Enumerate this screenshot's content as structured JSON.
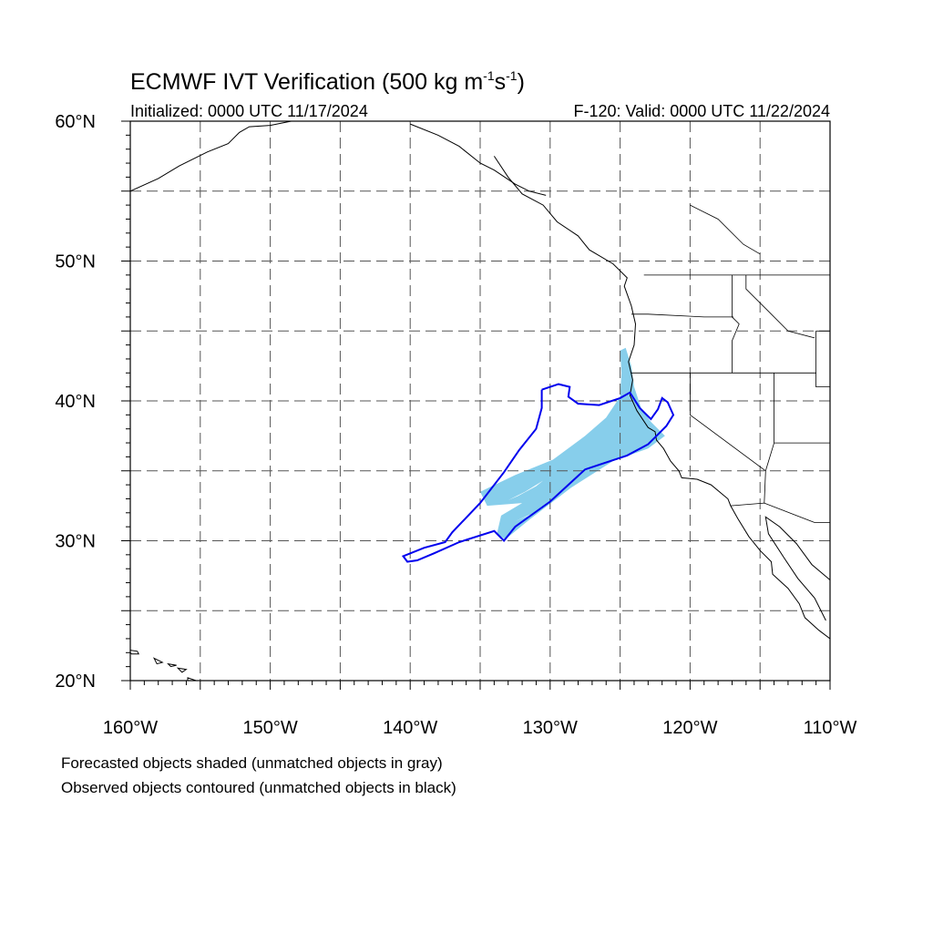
{
  "title": "ECMWF IVT Verification (500 kg m",
  "title_sup1": "-1",
  "title_mid": "s",
  "title_sup2": "-1",
  "title_end": ")",
  "initialized": "Initialized: 0000 UTC 11/17/2024",
  "valid": "F-120: Valid: 0000 UTC 11/22/2024",
  "map": {
    "lon_range": [
      -160,
      -110
    ],
    "lat_range": [
      20,
      60
    ],
    "lon_ticks": [
      {
        "value": -160,
        "label": "160°W"
      },
      {
        "value": -150,
        "label": "150°W"
      },
      {
        "value": -140,
        "label": "140°W"
      },
      {
        "value": -130,
        "label": "130°W"
      },
      {
        "value": -120,
        "label": "120°W"
      },
      {
        "value": -110,
        "label": "110°W"
      }
    ],
    "lat_ticks": [
      {
        "value": 60,
        "label": "60°N"
      },
      {
        "value": 50,
        "label": "50°N"
      },
      {
        "value": 40,
        "label": "40°N"
      },
      {
        "value": 30,
        "label": "30°N"
      },
      {
        "value": 20,
        "label": "20°N"
      }
    ],
    "grid_lons": [
      -155,
      -150,
      -145,
      -140,
      -135,
      -130,
      -125,
      -120,
      -115
    ],
    "grid_lats": [
      55,
      50,
      45,
      40,
      35,
      30,
      25
    ],
    "forecast_color": "#87ceeb",
    "observed_color": "#0000ee",
    "forecast_object": [
      [
        -124.6,
        43.8
      ],
      [
        -124.2,
        42.5
      ],
      [
        -124.0,
        41.0
      ],
      [
        -123.5,
        39.5
      ],
      [
        -122.8,
        38.5
      ],
      [
        -121.8,
        37.5
      ],
      [
        -123.0,
        36.6
      ],
      [
        -125.5,
        35.7
      ],
      [
        -128.5,
        33.8
      ],
      [
        -131.5,
        31.5
      ],
      [
        -133.2,
        30.1
      ],
      [
        -133.8,
        30.5
      ],
      [
        -133.5,
        31.8
      ],
      [
        -132.0,
        32.7
      ],
      [
        -134.5,
        32.5
      ],
      [
        -135.0,
        33.5
      ],
      [
        -132.5,
        34.7
      ],
      [
        -129.8,
        35.8
      ],
      [
        -127.5,
        37.5
      ],
      [
        -126.0,
        38.8
      ],
      [
        -125.0,
        40.3
      ],
      [
        -124.9,
        42.0
      ],
      [
        -125.0,
        43.6
      ]
    ],
    "forecast_gaps": [
      [
        [
          -130.5,
          34.3
        ],
        [
          -131.8,
          33.5
        ],
        [
          -133.0,
          32.9
        ],
        [
          -132.3,
          33.2
        ],
        [
          -131.0,
          33.9
        ]
      ],
      [
        [
          -131.0,
          32.0
        ],
        [
          -132.5,
          31.4
        ],
        [
          -131.6,
          31.8
        ]
      ]
    ],
    "observed_object": [
      [
        -130.6,
        40.8
      ],
      [
        -129.4,
        41.2
      ],
      [
        -128.6,
        41.0
      ],
      [
        -128.7,
        40.3
      ],
      [
        -128.0,
        39.8
      ],
      [
        -126.5,
        39.7
      ],
      [
        -125.0,
        40.2
      ],
      [
        -124.3,
        40.6
      ],
      [
        -123.6,
        39.5
      ],
      [
        -122.8,
        38.7
      ],
      [
        -122.3,
        39.4
      ],
      [
        -122.0,
        40.2
      ],
      [
        -121.6,
        39.9
      ],
      [
        -121.2,
        39.0
      ],
      [
        -121.7,
        38.2
      ],
      [
        -122.4,
        37.5
      ],
      [
        -123.0,
        36.9
      ],
      [
        -124.5,
        36.1
      ],
      [
        -127.5,
        35.1
      ],
      [
        -130.0,
        32.8
      ],
      [
        -132.5,
        31.0
      ],
      [
        -133.3,
        30.0
      ],
      [
        -134.0,
        30.7
      ],
      [
        -136.5,
        29.9
      ],
      [
        -138.3,
        29.1
      ],
      [
        -139.5,
        28.6
      ],
      [
        -140.2,
        28.5
      ],
      [
        -140.5,
        28.9
      ],
      [
        -139.0,
        29.5
      ],
      [
        -137.5,
        29.9
      ],
      [
        -137.0,
        30.6
      ],
      [
        -135.0,
        32.7
      ],
      [
        -133.3,
        34.9
      ],
      [
        -132.2,
        36.5
      ],
      [
        -131.0,
        38.0
      ],
      [
        -130.6,
        39.5
      ],
      [
        -130.6,
        40.8
      ]
    ],
    "coastline": [
      [
        -134.0,
        57.5
      ],
      [
        -133.0,
        56.0
      ],
      [
        -132.0,
        54.8
      ],
      [
        -130.5,
        54.0
      ],
      [
        -129.5,
        52.8
      ],
      [
        -128.0,
        51.8
      ],
      [
        -127.2,
        50.8
      ],
      [
        -125.5,
        49.8
      ],
      [
        -124.5,
        48.8
      ],
      [
        -124.7,
        48.2
      ],
      [
        -124.2,
        46.8
      ],
      [
        -123.9,
        45.5
      ],
      [
        -124.0,
        44.0
      ],
      [
        -124.4,
        42.8
      ],
      [
        -124.1,
        41.5
      ],
      [
        -124.3,
        40.4
      ],
      [
        -123.8,
        39.3
      ],
      [
        -123.0,
        38.1
      ],
      [
        -122.5,
        37.8
      ],
      [
        -122.4,
        37.2
      ],
      [
        -121.9,
        36.6
      ],
      [
        -121.4,
        35.7
      ],
      [
        -120.8,
        35.0
      ],
      [
        -120.6,
        34.5
      ],
      [
        -119.5,
        34.4
      ],
      [
        -118.5,
        34.0
      ],
      [
        -117.3,
        33.0
      ],
      [
        -117.1,
        32.5
      ],
      [
        -116.6,
        31.6
      ],
      [
        -115.8,
        30.3
      ],
      [
        -115.0,
        29.3
      ],
      [
        -114.2,
        28.5
      ],
      [
        -114.1,
        27.6
      ],
      [
        -113.0,
        26.6
      ],
      [
        -112.2,
        25.5
      ],
      [
        -111.8,
        24.5
      ],
      [
        -110.8,
        23.6
      ],
      [
        -110.0,
        23.0
      ]
    ],
    "gulf_coast": [
      [
        -110.0,
        27.2
      ],
      [
        -111.3,
        28.3
      ],
      [
        -112.4,
        29.8
      ],
      [
        -113.6,
        31.0
      ],
      [
        -114.6,
        31.7
      ],
      [
        -114.4,
        30.5
      ],
      [
        -113.3,
        28.8
      ],
      [
        -112.3,
        27.3
      ],
      [
        -111.1,
        25.9
      ],
      [
        -110.3,
        24.3
      ]
    ],
    "alaska_coast": [
      [
        -160.0,
        55.0
      ],
      [
        -158.0,
        55.9
      ],
      [
        -156.5,
        56.8
      ],
      [
        -154.5,
        57.8
      ],
      [
        -153.0,
        58.4
      ],
      [
        -152.2,
        59.2
      ],
      [
        -151.5,
        59.6
      ],
      [
        -150.0,
        59.7
      ],
      [
        -148.5,
        60.0
      ]
    ],
    "se_alaska": [
      [
        -140.0,
        59.8
      ],
      [
        -138.0,
        59.0
      ],
      [
        -136.5,
        58.2
      ],
      [
        -135.0,
        57.0
      ],
      [
        -134.0,
        56.5
      ],
      [
        -132.5,
        55.5
      ],
      [
        -131.5,
        55.0
      ],
      [
        -130.3,
        54.7
      ]
    ],
    "hawaii": [
      [
        [
          -160.2,
          22.2
        ],
        [
          -159.5,
          22.1
        ],
        [
          -159.4,
          21.9
        ],
        [
          -159.9,
          21.9
        ],
        [
          -160.2,
          22.2
        ]
      ],
      [
        [
          -158.3,
          21.6
        ],
        [
          -157.7,
          21.3
        ],
        [
          -158.1,
          21.2
        ],
        [
          -158.3,
          21.6
        ]
      ],
      [
        [
          -157.3,
          21.2
        ],
        [
          -156.7,
          21.1
        ],
        [
          -157.1,
          21.0
        ],
        [
          -157.3,
          21.2
        ]
      ],
      [
        [
          -156.6,
          20.9
        ],
        [
          -156.0,
          20.8
        ],
        [
          -156.3,
          20.6
        ],
        [
          -156.6,
          20.9
        ]
      ],
      [
        [
          -155.9,
          20.2
        ],
        [
          -155.0,
          19.9
        ],
        [
          -155.3,
          19.1
        ],
        [
          -155.9,
          19.5
        ],
        [
          -155.9,
          20.2
        ]
      ]
    ],
    "borders": [
      [
        [
          -123.3,
          49.0
        ],
        [
          -110.0,
          49.0
        ]
      ],
      [
        [
          -124.2,
          46.2
        ],
        [
          -123.0,
          46.2
        ],
        [
          -119.0,
          46.0
        ],
        [
          -116.9,
          46.0
        ]
      ],
      [
        [
          -124.2,
          42.0
        ],
        [
          -117.0,
          42.0
        ],
        [
          -111.0,
          42.0
        ]
      ],
      [
        [
          -120.0,
          42.0
        ],
        [
          -120.0,
          39.0
        ],
        [
          -114.6,
          35.0
        ]
      ],
      [
        [
          -117.1,
          32.5
        ],
        [
          -114.7,
          32.7
        ],
        [
          -111.1,
          31.3
        ],
        [
          -110.0,
          31.3
        ]
      ],
      [
        [
          -117.0,
          49.0
        ],
        [
          -117.0,
          46.0
        ],
        [
          -116.5,
          45.5
        ],
        [
          -117.0,
          44.3
        ],
        [
          -117.0,
          42.0
        ]
      ],
      [
        [
          -114.0,
          42.0
        ],
        [
          -114.0,
          37.0
        ],
        [
          -114.6,
          35.0
        ],
        [
          -114.7,
          32.7
        ]
      ],
      [
        [
          -111.0,
          45.0
        ],
        [
          -110.0,
          45.0
        ]
      ],
      [
        [
          -111.0,
          45.0
        ],
        [
          -111.0,
          41.0
        ],
        [
          -110.0,
          41.0
        ]
      ],
      [
        [
          -114.0,
          37.0
        ],
        [
          -110.0,
          37.0
        ]
      ],
      [
        [
          -116.0,
          49.0
        ],
        [
          -116.0,
          48.0
        ],
        [
          -114.5,
          46.5
        ],
        [
          -113.0,
          45.0
        ],
        [
          -111.1,
          44.5
        ]
      ]
    ],
    "canada_river": [
      [
        -120.0,
        54.0
      ],
      [
        -118.0,
        53.0
      ],
      [
        -116.2,
        51.2
      ],
      [
        -115.0,
        50.5
      ]
    ]
  },
  "footnotes": [
    "Forecasted objects shaded (unmatched objects in gray)",
    "Observed objects contoured (unmatched objects in black)"
  ]
}
